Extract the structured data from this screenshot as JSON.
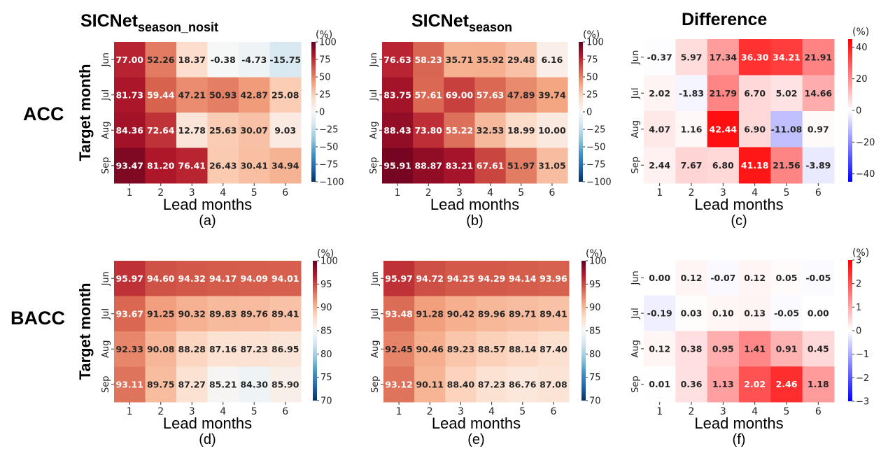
{
  "chart_data": {
    "type": "heatmap",
    "row_titles": [
      "ACC",
      "BACC"
    ],
    "column_titles": [
      {
        "main": "SICNet",
        "sub": "season_nosit"
      },
      {
        "main": "SICNet",
        "sub": "season"
      },
      {
        "main": "Difference",
        "sub": ""
      }
    ],
    "ylabel": "Target month",
    "xlabel": "Lead months",
    "x_categories": [
      "1",
      "2",
      "3",
      "4",
      "5",
      "6"
    ],
    "y_categories": [
      "Jun",
      "Jul",
      "Aug",
      "Sep"
    ],
    "colorbar_unit": "(%)",
    "panels": [
      {
        "id": "a",
        "caption": "(a)",
        "metric": "ACC",
        "model": "SICNet_season_nosit",
        "colormap": "RdBu_r",
        "vmin": -100,
        "vmax": 100,
        "colorbar_ticks": [
          "100",
          "75",
          "50",
          "25",
          "0",
          "−25",
          "−50",
          "−75",
          "−100"
        ],
        "values": [
          [
            77.0,
            52.26,
            18.37,
            -0.38,
            -4.73,
            -15.75
          ],
          [
            81.73,
            59.44,
            47.21,
            50.93,
            42.87,
            25.08
          ],
          [
            84.36,
            72.64,
            12.78,
            25.63,
            30.07,
            9.03
          ],
          [
            93.47,
            81.2,
            76.41,
            26.43,
            30.41,
            34.94
          ]
        ],
        "labels": [
          [
            "77.00",
            "52.26",
            "18.37",
            "-0.38",
            "-4.73",
            "-15.75"
          ],
          [
            "81.73",
            "59.44",
            "47.21",
            "50.93",
            "42.87",
            "25.08"
          ],
          [
            "84.36",
            "72.64",
            "12.78",
            "25.63",
            "30.07",
            "9.03"
          ],
          [
            "93.47",
            "81.20",
            "76.41",
            "26.43",
            "30.41",
            "34.94"
          ]
        ]
      },
      {
        "id": "b",
        "caption": "(b)",
        "metric": "ACC",
        "model": "SICNet_season",
        "colormap": "RdBu_r",
        "vmin": -100,
        "vmax": 100,
        "colorbar_ticks": [
          "100",
          "75",
          "50",
          "25",
          "0",
          "−25",
          "−50",
          "−75",
          "−100"
        ],
        "values": [
          [
            76.63,
            58.23,
            35.71,
            35.92,
            29.48,
            6.16
          ],
          [
            83.75,
            57.61,
            69.0,
            57.63,
            47.89,
            39.74
          ],
          [
            88.43,
            73.8,
            55.22,
            32.53,
            18.99,
            10.0
          ],
          [
            95.91,
            88.87,
            83.21,
            67.61,
            51.97,
            31.05
          ]
        ],
        "labels": [
          [
            "76.63",
            "58.23",
            "35.71",
            "35.92",
            "29.48",
            "6.16"
          ],
          [
            "83.75",
            "57.61",
            "69.00",
            "57.63",
            "47.89",
            "39.74"
          ],
          [
            "88.43",
            "73.80",
            "55.22",
            "32.53",
            "18.99",
            "10.00"
          ],
          [
            "95.91",
            "88.87",
            "83.21",
            "67.61",
            "51.97",
            "31.05"
          ]
        ]
      },
      {
        "id": "c",
        "caption": "(c)",
        "metric": "ACC",
        "model": "Difference",
        "colormap": "bwr",
        "vmin": -45,
        "vmax": 45,
        "colorbar_ticks": [
          "40",
          "20",
          "0",
          "−20",
          "−40"
        ],
        "colorbar_tick_values": [
          40,
          20,
          0,
          -20,
          -40
        ],
        "values": [
          [
            -0.37,
            5.97,
            17.34,
            36.3,
            34.21,
            21.91
          ],
          [
            2.02,
            -1.83,
            21.79,
            6.7,
            5.02,
            14.66
          ],
          [
            4.07,
            1.16,
            42.44,
            6.9,
            -11.08,
            0.97
          ],
          [
            2.44,
            7.67,
            6.8,
            41.18,
            21.56,
            -3.89
          ]
        ],
        "labels": [
          [
            "-0.37",
            "5.97",
            "17.34",
            "36.30",
            "34.21",
            "21.91"
          ],
          [
            "2.02",
            "-1.83",
            "21.79",
            "6.70",
            "5.02",
            "14.66"
          ],
          [
            "4.07",
            "1.16",
            "42.44",
            "6.90",
            "-11.08",
            "0.97"
          ],
          [
            "2.44",
            "7.67",
            "6.80",
            "41.18",
            "21.56",
            "-3.89"
          ]
        ]
      },
      {
        "id": "d",
        "caption": "(d)",
        "metric": "BACC",
        "model": "SICNet_season_nosit",
        "colormap": "RdBu_r",
        "vmin": 70,
        "vmax": 100,
        "colorbar_ticks": [
          "100",
          "95",
          "90",
          "85",
          "80",
          "75",
          "70"
        ],
        "values": [
          [
            95.97,
            94.6,
            94.32,
            94.17,
            94.09,
            94.01
          ],
          [
            93.67,
            91.25,
            90.32,
            89.83,
            89.76,
            89.41
          ],
          [
            92.33,
            90.08,
            88.28,
            87.16,
            87.23,
            86.95
          ],
          [
            93.11,
            89.75,
            87.27,
            85.21,
            84.3,
            85.9
          ]
        ],
        "labels": [
          [
            "95.97",
            "94.60",
            "94.32",
            "94.17",
            "94.09",
            "94.01"
          ],
          [
            "93.67",
            "91.25",
            "90.32",
            "89.83",
            "89.76",
            "89.41"
          ],
          [
            "92.33",
            "90.08",
            "88.28",
            "87.16",
            "87.23",
            "86.95"
          ],
          [
            "93.11",
            "89.75",
            "87.27",
            "85.21",
            "84.30",
            "85.90"
          ]
        ]
      },
      {
        "id": "e",
        "caption": "(e)",
        "metric": "BACC",
        "model": "SICNet_season",
        "colormap": "RdBu_r",
        "vmin": 70,
        "vmax": 100,
        "colorbar_ticks": [
          "100",
          "95",
          "90",
          "85",
          "80",
          "75",
          "70"
        ],
        "values": [
          [
            95.97,
            94.72,
            94.25,
            94.29,
            94.14,
            93.96
          ],
          [
            93.48,
            91.28,
            90.42,
            89.96,
            89.71,
            89.41
          ],
          [
            92.45,
            90.46,
            89.23,
            88.57,
            88.14,
            87.4
          ],
          [
            93.12,
            90.11,
            88.4,
            87.23,
            86.76,
            87.08
          ]
        ],
        "labels": [
          [
            "95.97",
            "94.72",
            "94.25",
            "94.29",
            "94.14",
            "93.96"
          ],
          [
            "93.48",
            "91.28",
            "90.42",
            "89.96",
            "89.71",
            "89.41"
          ],
          [
            "92.45",
            "90.46",
            "89.23",
            "88.57",
            "88.14",
            "87.40"
          ],
          [
            "93.12",
            "90.11",
            "88.40",
            "87.23",
            "86.76",
            "87.08"
          ]
        ]
      },
      {
        "id": "f",
        "caption": "(f)",
        "metric": "BACC",
        "model": "Difference",
        "colormap": "bwr",
        "vmin": -3,
        "vmax": 3,
        "colorbar_ticks": [
          "3",
          "2",
          "1",
          "0",
          "−1",
          "−2",
          "−3"
        ],
        "values": [
          [
            0.0,
            0.12,
            -0.07,
            0.12,
            0.05,
            -0.05
          ],
          [
            -0.19,
            0.03,
            0.1,
            0.13,
            -0.05,
            0.0
          ],
          [
            0.12,
            0.38,
            0.95,
            1.41,
            0.91,
            0.45
          ],
          [
            0.01,
            0.36,
            1.13,
            2.02,
            2.46,
            1.18
          ]
        ],
        "labels": [
          [
            "0.00",
            "0.12",
            "-0.07",
            "0.12",
            "0.05",
            "-0.05"
          ],
          [
            "-0.19",
            "0.03",
            "0.10",
            "0.13",
            "-0.05",
            "0.00"
          ],
          [
            "0.12",
            "0.38",
            "0.95",
            "1.41",
            "0.91",
            "0.45"
          ],
          [
            "0.01",
            "0.36",
            "1.13",
            "2.02",
            "2.46",
            "1.18"
          ]
        ]
      }
    ]
  }
}
